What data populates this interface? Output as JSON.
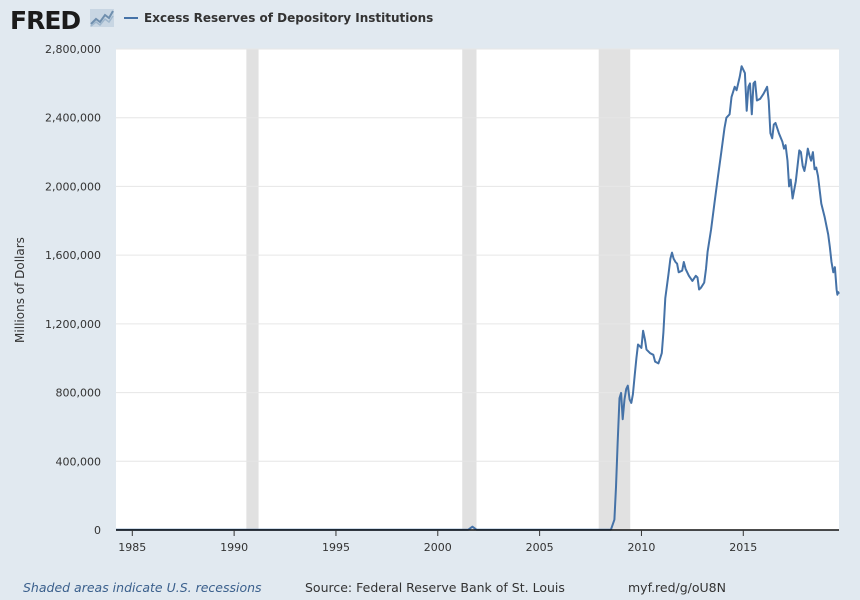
{
  "header": {
    "logo_text": "FRED",
    "series_name": "Excess Reserves of Depository Institutions",
    "series_color": "#4572a7"
  },
  "footer": {
    "recession_note": "Shaded areas indicate U.S. recessions",
    "source": "Source: Federal Reserve Bank of St. Louis",
    "short_link": "myf.red/g/oU8N"
  },
  "chart_data": {
    "type": "line",
    "title": "",
    "xlabel": "",
    "ylabel": "Millions of Dollars",
    "xlim": [
      1984.2,
      2019.7
    ],
    "ylim": [
      0,
      2800000
    ],
    "x_ticks": [
      1985,
      1990,
      1995,
      2000,
      2005,
      2010,
      2015
    ],
    "x_tick_labels": [
      "1985",
      "1990",
      "1995",
      "2000",
      "2005",
      "2010",
      "2015"
    ],
    "y_ticks": [
      0,
      400000,
      800000,
      1200000,
      1600000,
      2000000,
      2400000,
      2800000
    ],
    "y_tick_labels": [
      "0",
      "400,000",
      "800,000",
      "1,200,000",
      "1,600,000",
      "2,000,000",
      "2,400,000",
      "2,800,000"
    ],
    "grid": true,
    "recessions": [
      [
        1990.6,
        1991.2
      ],
      [
        2001.2,
        2001.9
      ],
      [
        2007.9,
        2009.45
      ]
    ],
    "recession_color": "#e1e1e1",
    "series": [
      {
        "name": "Excess Reserves of Depository Institutions",
        "color": "#4572a7",
        "points": [
          [
            1984.2,
            1200
          ],
          [
            1990.0,
            1500
          ],
          [
            1995.0,
            1200
          ],
          [
            2000.0,
            1500
          ],
          [
            2001.5,
            1800
          ],
          [
            2001.7,
            19000
          ],
          [
            2001.9,
            1800
          ],
          [
            2003.5,
            2000
          ],
          [
            2007.0,
            1800
          ],
          [
            2008.5,
            1900
          ],
          [
            2008.67,
            60000
          ],
          [
            2008.75,
            250000
          ],
          [
            2008.83,
            500000
          ],
          [
            2008.92,
            767000
          ],
          [
            2009.0,
            798000
          ],
          [
            2009.08,
            645000
          ],
          [
            2009.17,
            760000
          ],
          [
            2009.25,
            820000
          ],
          [
            2009.33,
            840000
          ],
          [
            2009.42,
            760000
          ],
          [
            2009.5,
            740000
          ],
          [
            2009.58,
            790000
          ],
          [
            2009.67,
            900000
          ],
          [
            2009.75,
            1000000
          ],
          [
            2009.83,
            1080000
          ],
          [
            2009.92,
            1070000
          ],
          [
            2010.0,
            1060000
          ],
          [
            2010.08,
            1160000
          ],
          [
            2010.17,
            1110000
          ],
          [
            2010.25,
            1050000
          ],
          [
            2010.42,
            1030000
          ],
          [
            2010.58,
            1020000
          ],
          [
            2010.67,
            980000
          ],
          [
            2010.83,
            970000
          ],
          [
            2010.92,
            1000000
          ],
          [
            2011.0,
            1030000
          ],
          [
            2011.08,
            1150000
          ],
          [
            2011.17,
            1350000
          ],
          [
            2011.33,
            1490000
          ],
          [
            2011.42,
            1580000
          ],
          [
            2011.5,
            1615000
          ],
          [
            2011.58,
            1580000
          ],
          [
            2011.67,
            1560000
          ],
          [
            2011.75,
            1550000
          ],
          [
            2011.83,
            1500000
          ],
          [
            2012.0,
            1510000
          ],
          [
            2012.08,
            1560000
          ],
          [
            2012.17,
            1520000
          ],
          [
            2012.33,
            1480000
          ],
          [
            2012.5,
            1450000
          ],
          [
            2012.67,
            1480000
          ],
          [
            2012.75,
            1470000
          ],
          [
            2012.83,
            1400000
          ],
          [
            2012.92,
            1410000
          ],
          [
            2013.08,
            1440000
          ],
          [
            2013.17,
            1520000
          ],
          [
            2013.25,
            1620000
          ],
          [
            2013.42,
            1750000
          ],
          [
            2013.58,
            1900000
          ],
          [
            2013.75,
            2050000
          ],
          [
            2013.92,
            2200000
          ],
          [
            2014.08,
            2340000
          ],
          [
            2014.17,
            2400000
          ],
          [
            2014.33,
            2420000
          ],
          [
            2014.42,
            2520000
          ],
          [
            2014.58,
            2580000
          ],
          [
            2014.67,
            2560000
          ],
          [
            2014.83,
            2640000
          ],
          [
            2014.92,
            2700000
          ],
          [
            2015.08,
            2660000
          ],
          [
            2015.17,
            2440000
          ],
          [
            2015.25,
            2580000
          ],
          [
            2015.33,
            2600000
          ],
          [
            2015.42,
            2420000
          ],
          [
            2015.5,
            2600000
          ],
          [
            2015.58,
            2610000
          ],
          [
            2015.67,
            2500000
          ],
          [
            2015.83,
            2510000
          ],
          [
            2016.0,
            2540000
          ],
          [
            2016.17,
            2580000
          ],
          [
            2016.25,
            2500000
          ],
          [
            2016.33,
            2310000
          ],
          [
            2016.42,
            2280000
          ],
          [
            2016.5,
            2360000
          ],
          [
            2016.58,
            2370000
          ],
          [
            2016.75,
            2310000
          ],
          [
            2016.92,
            2260000
          ],
          [
            2017.0,
            2220000
          ],
          [
            2017.08,
            2240000
          ],
          [
            2017.17,
            2150000
          ],
          [
            2017.25,
            2000000
          ],
          [
            2017.33,
            2040000
          ],
          [
            2017.42,
            1930000
          ],
          [
            2017.58,
            2030000
          ],
          [
            2017.75,
            2210000
          ],
          [
            2017.83,
            2200000
          ],
          [
            2017.92,
            2120000
          ],
          [
            2018.0,
            2090000
          ],
          [
            2018.08,
            2140000
          ],
          [
            2018.17,
            2220000
          ],
          [
            2018.25,
            2180000
          ],
          [
            2018.33,
            2150000
          ],
          [
            2018.42,
            2200000
          ],
          [
            2018.5,
            2100000
          ],
          [
            2018.58,
            2110000
          ],
          [
            2018.67,
            2060000
          ],
          [
            2018.83,
            1900000
          ],
          [
            2019.0,
            1820000
          ],
          [
            2019.17,
            1720000
          ],
          [
            2019.25,
            1650000
          ],
          [
            2019.33,
            1560000
          ],
          [
            2019.42,
            1500000
          ],
          [
            2019.5,
            1530000
          ],
          [
            2019.58,
            1400000
          ],
          [
            2019.62,
            1370000
          ],
          [
            2019.66,
            1385000
          ],
          [
            2019.7,
            1375000
          ]
        ]
      }
    ]
  }
}
